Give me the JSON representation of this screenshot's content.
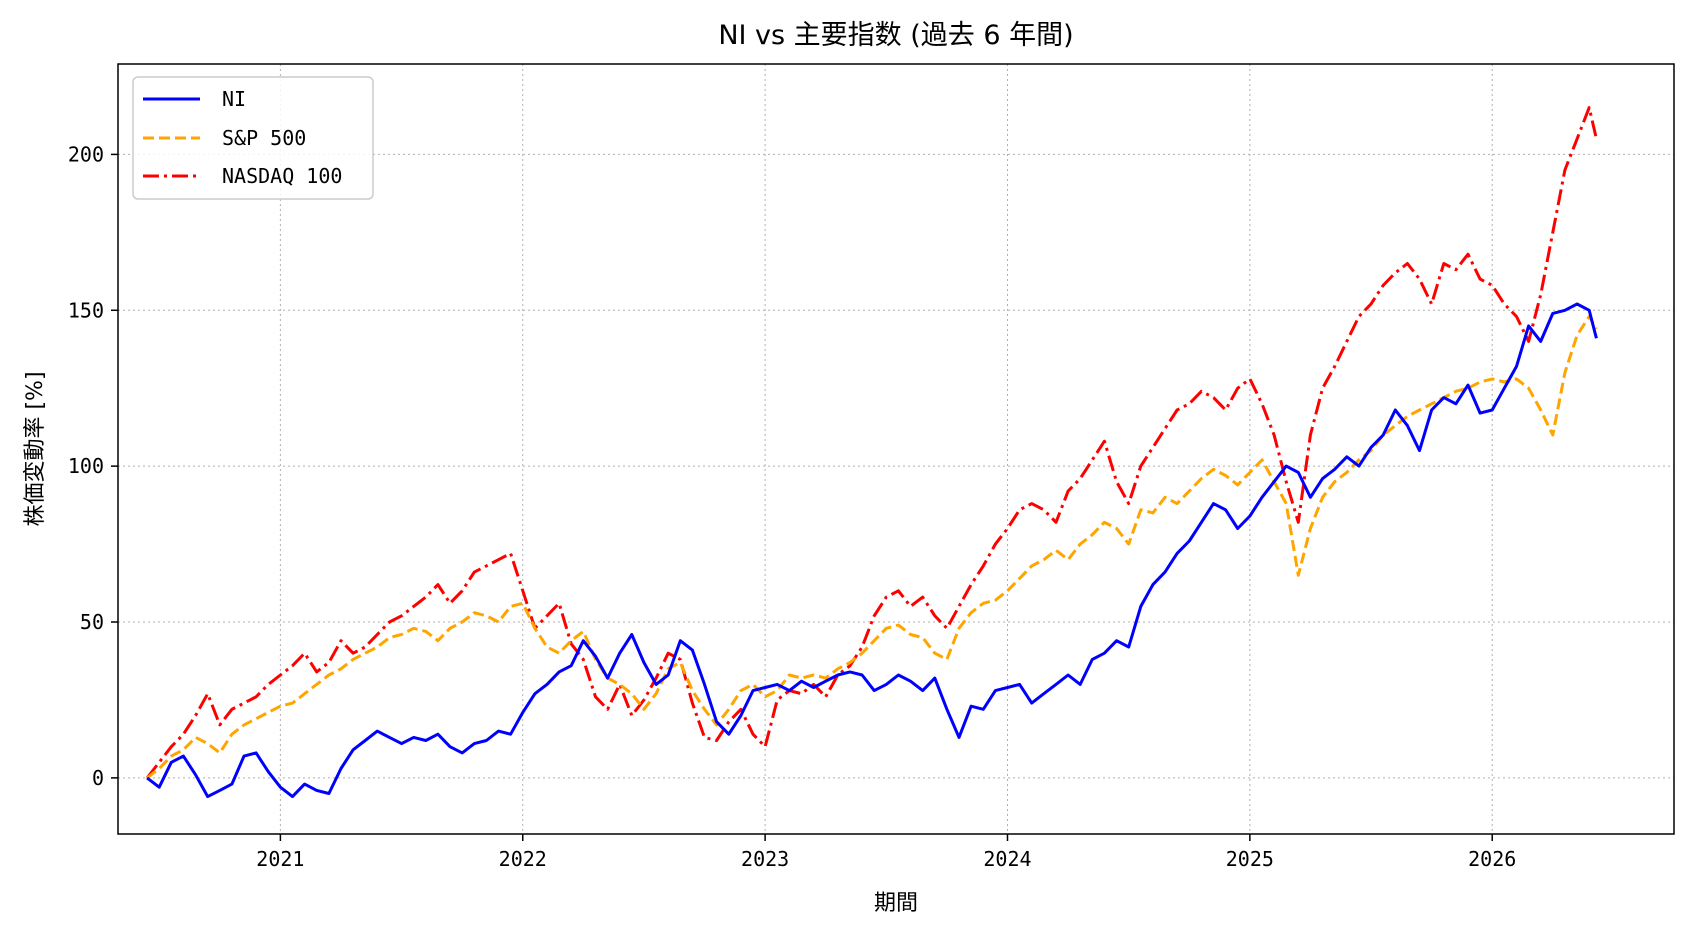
{
  "chart_data": {
    "type": "line",
    "title": "NI vs 主要指数 (過去 6 年間)",
    "xlabel": "期間",
    "ylabel": "株価変動率 [%]",
    "xlim": [
      2020.33,
      2026.75
    ],
    "ylim": [
      -18,
      229
    ],
    "x_ticks": [
      2021,
      2022,
      2023,
      2024,
      2025,
      2026
    ],
    "x_tick_labels": [
      "2021",
      "2022",
      "2023",
      "2024",
      "2025",
      "2026"
    ],
    "y_ticks": [
      0,
      50,
      100,
      150,
      200
    ],
    "y_tick_labels": [
      "0",
      "50",
      "100",
      "150",
      "200"
    ],
    "grid": true,
    "legend_position": "top-left",
    "series": [
      {
        "name": "NI",
        "color": "#0000ff",
        "style": "solid",
        "x": [
          2020.45,
          2020.5,
          2020.55,
          2020.6,
          2020.65,
          2020.7,
          2020.75,
          2020.8,
          2020.85,
          2020.9,
          2020.95,
          2021.0,
          2021.05,
          2021.1,
          2021.15,
          2021.2,
          2021.25,
          2021.3,
          2021.35,
          2021.4,
          2021.45,
          2021.5,
          2021.55,
          2021.6,
          2021.65,
          2021.7,
          2021.75,
          2021.8,
          2021.85,
          2021.9,
          2021.95,
          2022.0,
          2022.05,
          2022.1,
          2022.15,
          2022.2,
          2022.25,
          2022.3,
          2022.35,
          2022.4,
          2022.45,
          2022.5,
          2022.55,
          2022.6,
          2022.65,
          2022.7,
          2022.75,
          2022.8,
          2022.85,
          2022.9,
          2022.95,
          2023.0,
          2023.05,
          2023.1,
          2023.15,
          2023.2,
          2023.25,
          2023.3,
          2023.35,
          2023.4,
          2023.45,
          2023.5,
          2023.55,
          2023.6,
          2023.65,
          2023.7,
          2023.75,
          2023.8,
          2023.85,
          2023.9,
          2023.95,
          2024.0,
          2024.05,
          2024.1,
          2024.15,
          2024.2,
          2024.25,
          2024.3,
          2024.35,
          2024.4,
          2024.45,
          2024.5,
          2024.55,
          2024.6,
          2024.65,
          2024.7,
          2024.75,
          2024.8,
          2024.85,
          2024.9,
          2024.95,
          2025.0,
          2025.05,
          2025.1,
          2025.15,
          2025.2,
          2025.25,
          2025.3,
          2025.35,
          2025.4,
          2025.45,
          2025.5,
          2025.55,
          2025.6,
          2025.65,
          2025.7,
          2025.75,
          2025.8,
          2025.85,
          2025.9,
          2025.95,
          2026.0,
          2026.05,
          2026.1,
          2026.15,
          2026.2,
          2026.25,
          2026.3,
          2026.35,
          2026.4,
          2026.43
        ],
        "values": [
          0,
          -3,
          5,
          7,
          1,
          -6,
          -4,
          -2,
          7,
          8,
          2,
          -3,
          -6,
          -2,
          -4,
          -5,
          3,
          9,
          12,
          15,
          13,
          11,
          13,
          12,
          14,
          10,
          8,
          11,
          12,
          15,
          14,
          21,
          27,
          30,
          34,
          36,
          44,
          39,
          32,
          40,
          46,
          37,
          30,
          33,
          44,
          41,
          30,
          18,
          14,
          20,
          28,
          29,
          30,
          28,
          31,
          29,
          31,
          33,
          34,
          33,
          28,
          30,
          33,
          31,
          28,
          32,
          22,
          13,
          23,
          22,
          28,
          29,
          30,
          24,
          27,
          30,
          33,
          30,
          38,
          40,
          44,
          42,
          55,
          62,
          66,
          72,
          76,
          82,
          88,
          86,
          80,
          84,
          90,
          95,
          100,
          98,
          90,
          96,
          99,
          103,
          100,
          106,
          110,
          118,
          113,
          105,
          118,
          122,
          120,
          126,
          117,
          118,
          125,
          132,
          145,
          140,
          149,
          150,
          152,
          150,
          141
        ]
      },
      {
        "name": "S&P 500",
        "color": "#ffa500",
        "style": "dashed",
        "x": [
          2020.45,
          2020.5,
          2020.55,
          2020.6,
          2020.65,
          2020.7,
          2020.75,
          2020.8,
          2020.85,
          2020.9,
          2020.95,
          2021.0,
          2021.05,
          2021.1,
          2021.15,
          2021.2,
          2021.25,
          2021.3,
          2021.35,
          2021.4,
          2021.45,
          2021.5,
          2021.55,
          2021.6,
          2021.65,
          2021.7,
          2021.75,
          2021.8,
          2021.85,
          2021.9,
          2021.95,
          2022.0,
          2022.05,
          2022.1,
          2022.15,
          2022.2,
          2022.25,
          2022.3,
          2022.35,
          2022.4,
          2022.45,
          2022.5,
          2022.55,
          2022.6,
          2022.65,
          2022.7,
          2022.75,
          2022.8,
          2022.85,
          2022.9,
          2022.95,
          2023.0,
          2023.05,
          2023.1,
          2023.15,
          2023.2,
          2023.25,
          2023.3,
          2023.35,
          2023.4,
          2023.45,
          2023.5,
          2023.55,
          2023.6,
          2023.65,
          2023.7,
          2023.75,
          2023.8,
          2023.85,
          2023.9,
          2023.95,
          2024.0,
          2024.05,
          2024.1,
          2024.15,
          2024.2,
          2024.25,
          2024.3,
          2024.35,
          2024.4,
          2024.45,
          2024.5,
          2024.55,
          2024.6,
          2024.65,
          2024.7,
          2024.75,
          2024.8,
          2024.85,
          2024.9,
          2024.95,
          2025.0,
          2025.05,
          2025.1,
          2025.15,
          2025.2,
          2025.25,
          2025.3,
          2025.35,
          2025.4,
          2025.45,
          2025.5,
          2025.55,
          2025.6,
          2025.65,
          2025.7,
          2025.75,
          2025.8,
          2025.85,
          2025.9,
          2025.95,
          2026.0,
          2026.05,
          2026.1,
          2026.15,
          2026.2,
          2026.25,
          2026.3,
          2026.35,
          2026.4,
          2026.43
        ],
        "values": [
          0,
          3,
          7,
          9,
          13,
          11,
          8,
          14,
          17,
          19,
          21,
          23,
          24,
          27,
          30,
          33,
          35,
          38,
          40,
          42,
          45,
          46,
          48,
          47,
          44,
          48,
          50,
          53,
          52,
          50,
          55,
          56,
          48,
          42,
          40,
          44,
          47,
          38,
          32,
          30,
          27,
          22,
          27,
          35,
          37,
          28,
          22,
          17,
          22,
          28,
          30,
          26,
          28,
          33,
          32,
          33,
          32,
          35,
          37,
          40,
          44,
          48,
          49,
          46,
          45,
          40,
          38,
          48,
          53,
          56,
          57,
          60,
          64,
          68,
          70,
          73,
          70,
          75,
          78,
          82,
          80,
          75,
          86,
          85,
          90,
          88,
          92,
          96,
          99,
          97,
          94,
          98,
          102,
          95,
          88,
          65,
          80,
          90,
          95,
          98,
          102,
          105,
          110,
          113,
          116,
          118,
          120,
          122,
          124,
          125,
          127,
          128,
          127,
          128,
          125,
          118,
          110,
          130,
          142,
          148,
          144
        ]
      },
      {
        "name": "NASDAQ 100",
        "color": "#ff0000",
        "style": "dashdot",
        "x": [
          2020.45,
          2020.5,
          2020.55,
          2020.6,
          2020.65,
          2020.7,
          2020.75,
          2020.8,
          2020.85,
          2020.9,
          2020.95,
          2021.0,
          2021.05,
          2021.1,
          2021.15,
          2021.2,
          2021.25,
          2021.3,
          2021.35,
          2021.4,
          2021.45,
          2021.5,
          2021.55,
          2021.6,
          2021.65,
          2021.7,
          2021.75,
          2021.8,
          2021.85,
          2021.9,
          2021.95,
          2022.0,
          2022.05,
          2022.1,
          2022.15,
          2022.2,
          2022.25,
          2022.3,
          2022.35,
          2022.4,
          2022.45,
          2022.5,
          2022.55,
          2022.6,
          2022.65,
          2022.7,
          2022.75,
          2022.8,
          2022.85,
          2022.9,
          2022.95,
          2023.0,
          2023.05,
          2023.1,
          2023.15,
          2023.2,
          2023.25,
          2023.3,
          2023.35,
          2023.4,
          2023.45,
          2023.5,
          2023.55,
          2023.6,
          2023.65,
          2023.7,
          2023.75,
          2023.8,
          2023.85,
          2023.9,
          2023.95,
          2024.0,
          2024.05,
          2024.1,
          2024.15,
          2024.2,
          2024.25,
          2024.3,
          2024.35,
          2024.4,
          2024.45,
          2024.5,
          2024.55,
          2024.6,
          2024.65,
          2024.7,
          2024.75,
          2024.8,
          2024.85,
          2024.9,
          2024.95,
          2025.0,
          2025.05,
          2025.1,
          2025.15,
          2025.2,
          2025.25,
          2025.3,
          2025.35,
          2025.4,
          2025.45,
          2025.5,
          2025.55,
          2025.6,
          2025.65,
          2025.7,
          2025.75,
          2025.8,
          2025.85,
          2025.9,
          2025.95,
          2026.0,
          2026.05,
          2026.1,
          2026.15,
          2026.2,
          2026.25,
          2026.3,
          2026.35,
          2026.4,
          2026.43
        ],
        "values": [
          0,
          5,
          10,
          14,
          20,
          27,
          17,
          22,
          24,
          26,
          30,
          33,
          36,
          40,
          34,
          37,
          44,
          40,
          42,
          46,
          50,
          52,
          55,
          58,
          62,
          56,
          60,
          66,
          68,
          70,
          72,
          60,
          48,
          52,
          56,
          43,
          38,
          26,
          22,
          30,
          20,
          25,
          32,
          40,
          38,
          24,
          13,
          12,
          18,
          22,
          14,
          10,
          25,
          28,
          27,
          30,
          26,
          33,
          36,
          42,
          52,
          58,
          60,
          55,
          58,
          52,
          48,
          55,
          62,
          68,
          75,
          80,
          86,
          88,
          86,
          82,
          92,
          96,
          102,
          108,
          95,
          88,
          100,
          106,
          112,
          118,
          120,
          124,
          122,
          118,
          125,
          128,
          120,
          110,
          95,
          82,
          110,
          125,
          132,
          140,
          148,
          152,
          158,
          162,
          165,
          160,
          152,
          165,
          163,
          168,
          160,
          158,
          152,
          148,
          140,
          155,
          175,
          195,
          205,
          215,
          205
        ]
      }
    ]
  }
}
